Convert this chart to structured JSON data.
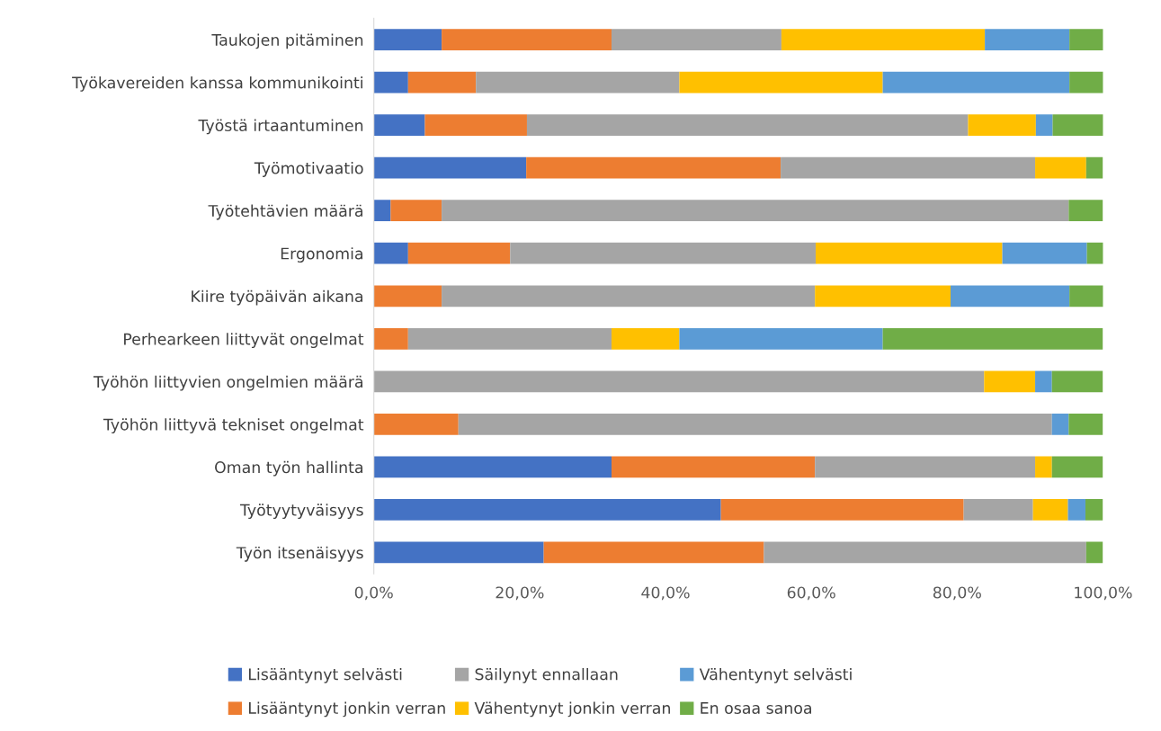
{
  "chart_data": {
    "type": "bar",
    "orientation": "horizontal",
    "stacked": true,
    "categories": [
      "Taukojen pitäminen",
      "Työkavereiden kanssa kommunikointi",
      "Työstä irtaantuminen",
      "Työmotivaatio",
      "Työtehtävien määrä",
      "Ergonomia",
      "Kiire työpäivän aikana",
      "Perhearkeen liittyvät ongelmat",
      "Työhön liittyvien ongelmien määrä",
      "Työhön liittyvä tekniset ongelmat",
      "Oman työn hallinta",
      "Työtyytyväisyys",
      "Työn itsenäisyys"
    ],
    "series": [
      {
        "name": "Lisääntynyt selvästi",
        "color": "#4472c4",
        "values": [
          9.3,
          4.7,
          7.0,
          20.9,
          2.3,
          4.7,
          null,
          null,
          null,
          null,
          32.6,
          47.6,
          23.3
        ]
      },
      {
        "name": "Lisääntynyt jonkin verran",
        "color": "#ed7d31",
        "values": [
          23.3,
          9.3,
          14.0,
          34.9,
          7.0,
          14.0,
          9.3,
          4.7,
          null,
          11.6,
          27.9,
          33.3,
          30.2
        ]
      },
      {
        "name": "Säilynyt ennallaan",
        "color": "#a5a5a5",
        "values": [
          23.3,
          27.9,
          60.5,
          34.9,
          86.0,
          41.9,
          51.2,
          27.9,
          83.7,
          81.4,
          30.2,
          9.5,
          44.2
        ]
      },
      {
        "name": "Vähentynyt jonkin verran",
        "color": "#ffc000",
        "values": [
          27.9,
          27.9,
          9.3,
          7.0,
          null,
          25.6,
          18.6,
          9.3,
          7.0,
          null,
          2.3,
          4.8,
          null
        ]
      },
      {
        "name": "Vähentynyt selvästi",
        "color": "#5b9bd5",
        "values": [
          11.6,
          25.6,
          2.3,
          null,
          null,
          11.6,
          16.3,
          27.9,
          2.3,
          2.3,
          null,
          2.4,
          null
        ]
      },
      {
        "name": "En osaa sanoa",
        "color": "#70ad47",
        "values": [
          4.7,
          4.7,
          7.0,
          2.3,
          4.7,
          2.3,
          4.7,
          30.2,
          7.0,
          4.7,
          7.0,
          2.4,
          2.3
        ]
      }
    ],
    "xlim": [
      0,
      100
    ],
    "xticks": [
      {
        "value": 0,
        "label": "0,0%"
      },
      {
        "value": 20,
        "label": "20,0%"
      },
      {
        "value": 40,
        "label": "40,0%"
      },
      {
        "value": 60,
        "label": "60,0%"
      },
      {
        "value": 80,
        "label": "80,0%"
      },
      {
        "value": 100,
        "label": "100,0%"
      }
    ],
    "grid": false,
    "legend": "bottom"
  }
}
